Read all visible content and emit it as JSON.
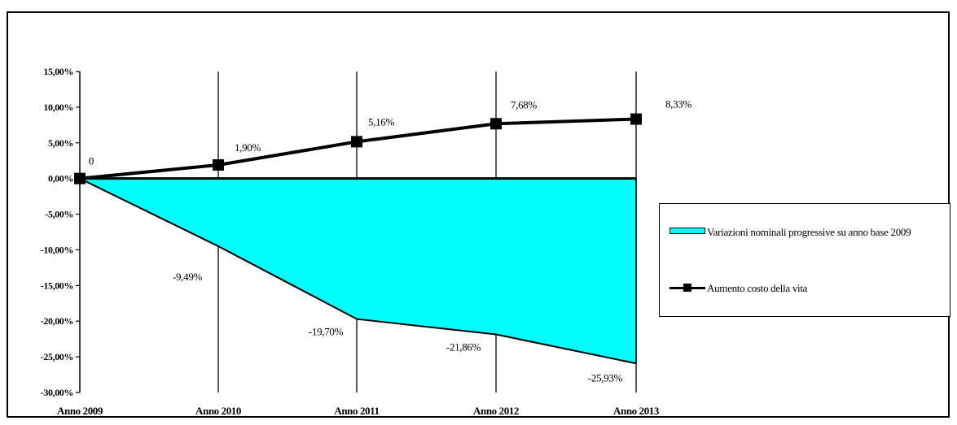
{
  "chart_data": {
    "type": "line",
    "categories": [
      "Anno 2009",
      "Anno 2010",
      "Anno 2011",
      "Anno 2012",
      "Anno 2013"
    ],
    "ylim": [
      -30,
      15
    ],
    "yticks": [
      "15,00%",
      "10,00%",
      "5,00%",
      "0,00%",
      "-5,00%",
      "-10,00%",
      "-15,00%",
      "-20,00%",
      "-25,00%",
      "-30,00%"
    ],
    "ytick_values": [
      15,
      10,
      5,
      0,
      -5,
      -10,
      -15,
      -20,
      -25,
      -30
    ],
    "grid": "vertical",
    "legend_position": "right",
    "series": [
      {
        "name": "Variazioni nominali progressive su anno base 2009",
        "kind": "area",
        "color": "#00ffff",
        "values": [
          0,
          -9.49,
          -19.7,
          -21.86,
          -25.93
        ],
        "labels": [
          "",
          "-9,49%",
          "-19,70%",
          "-21,86%",
          "-25,93%"
        ]
      },
      {
        "name": "Aumento costo della vita",
        "kind": "line",
        "marker": "square",
        "color": "#000000",
        "values": [
          0,
          1.9,
          5.16,
          7.68,
          8.33
        ],
        "labels": [
          "0",
          "1,90%",
          "5,16%",
          "7,68%",
          "8,33%"
        ]
      }
    ]
  }
}
